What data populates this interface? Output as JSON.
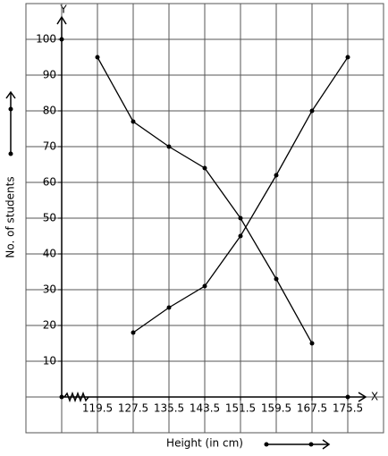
{
  "chart_data": {
    "type": "line",
    "y_axis_name": "Y",
    "x_axis_name": "X",
    "y_label": "No. of students",
    "x_label": "Height (in cm)",
    "xlim": [
      103.5,
      183.5
    ],
    "ylim": [
      -10,
      110
    ],
    "xticks": [
      119.5,
      127.5,
      135.5,
      143.5,
      151.5,
      159.5,
      167.5,
      175.5
    ],
    "yticks": [
      10,
      20,
      30,
      40,
      50,
      60,
      70,
      80,
      90,
      100
    ],
    "grid": true,
    "series": [
      {
        "color": "#000000",
        "x": [
          119.5,
          127.5,
          135.5,
          143.5,
          151.5,
          159.5,
          167.5
        ],
        "values": [
          95,
          77,
          70,
          64,
          50,
          33,
          15
        ]
      },
      {
        "color": "#000000",
        "x": [
          127.5,
          135.5,
          143.5,
          151.5,
          159.5,
          167.5,
          175.5
        ],
        "values": [
          18,
          25,
          31,
          45,
          62,
          80,
          95
        ]
      }
    ]
  }
}
